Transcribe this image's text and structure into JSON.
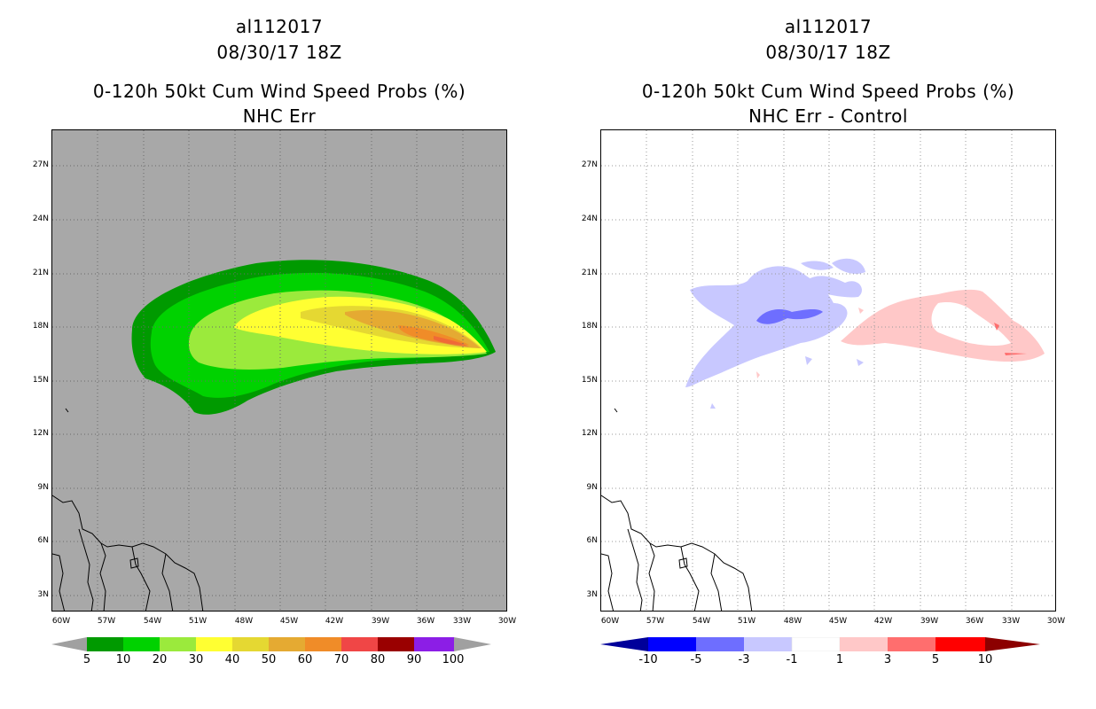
{
  "left_panel": {
    "storm_id": "al112017",
    "datetime": "08/30/17 18Z",
    "product": "0-120h 50kt Cum Wind Speed Probs (%)",
    "subtitle": "NHC Err"
  },
  "right_panel": {
    "storm_id": "al112017",
    "datetime": "08/30/17 18Z",
    "product": "0-120h 50kt Cum Wind Speed Probs (%)",
    "subtitle": "NHC Err - Control"
  },
  "axes": {
    "lat_labels": [
      "27N",
      "24N",
      "21N",
      "18N",
      "15N",
      "12N",
      "9N",
      "6N",
      "3N"
    ],
    "lon_labels": [
      "60W",
      "57W",
      "54W",
      "51W",
      "48W",
      "45W",
      "42W",
      "39W",
      "36W",
      "33W",
      "30W"
    ]
  },
  "left_colorbar": {
    "labels": [
      "5",
      "10",
      "20",
      "30",
      "40",
      "50",
      "60",
      "70",
      "80",
      "90",
      "100"
    ],
    "colors": [
      "#009a00",
      "#00d200",
      "#9bea3c",
      "#ffff32",
      "#e5d832",
      "#e5aa32",
      "#f08c28",
      "#f04646",
      "#9a0000",
      "#8c1ee6"
    ],
    "arrow_color": "#a0a0a0"
  },
  "right_colorbar": {
    "labels": [
      "-10",
      "-5",
      "-3",
      "-1",
      "1",
      "3",
      "5",
      "10"
    ],
    "colors": [
      "#0000ff",
      "#6e6eff",
      "#c8c8ff",
      "#ffffff",
      "#ffc8c8",
      "#ff6e6e",
      "#ff0000"
    ],
    "low_arrow": "#00009a",
    "high_arrow": "#8c0000"
  },
  "map_colors": {
    "left_background": "#a8a8a8",
    "right_background": "#ffffff"
  }
}
